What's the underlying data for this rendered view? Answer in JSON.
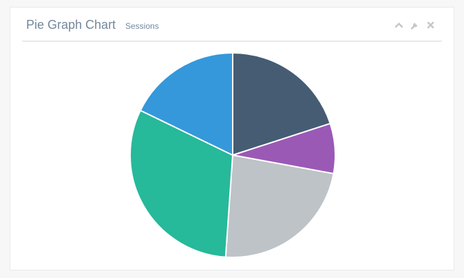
{
  "panel": {
    "title": "Pie Graph Chart",
    "subtitle": "Sessions",
    "tools": [
      "chevron-up-icon",
      "wrench-icon",
      "close-icon"
    ],
    "tool_color": "#c5c7cb"
  },
  "chart_data": {
    "type": "pie",
    "title": "",
    "slices": [
      {
        "value": 20.0,
        "color": "#455c73"
      },
      {
        "value": 7.9,
        "color": "#9b59b6"
      },
      {
        "value": 23.2,
        "color": "#bdc3c7"
      },
      {
        "value": 31.1,
        "color": "#26b99a"
      },
      {
        "value": 17.8,
        "color": "#3498db"
      }
    ],
    "start_angle_deg": 0,
    "direction": "clockwise"
  }
}
